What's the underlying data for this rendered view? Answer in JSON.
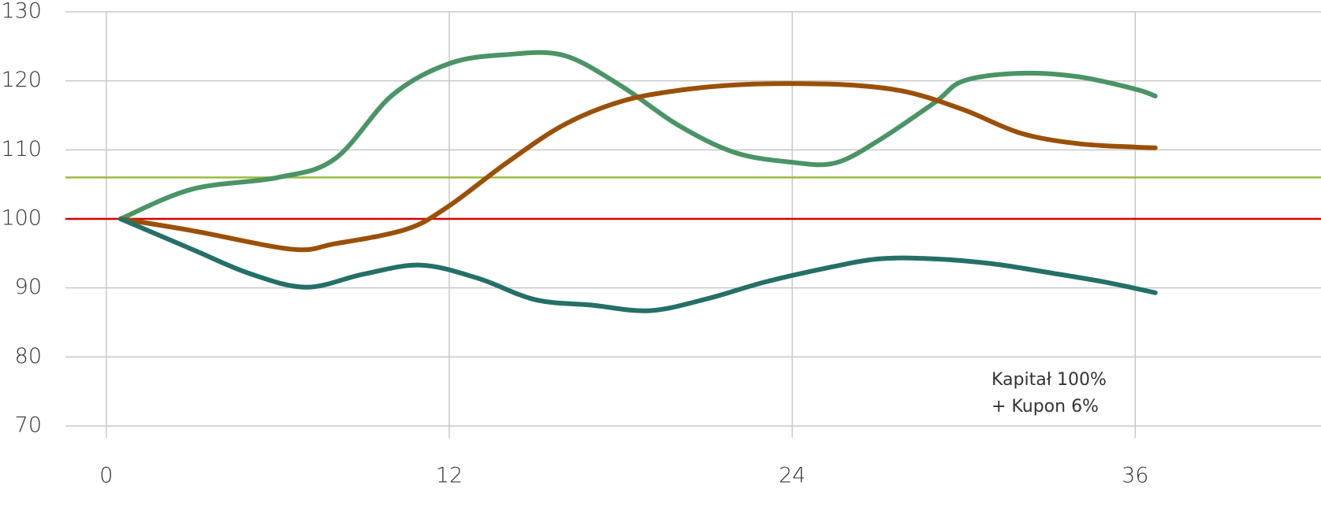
{
  "chart_data": {
    "type": "line",
    "annotation": [
      "Kapitał 100%",
      "+ Kupon 6%"
    ],
    "xlim": [
      -1.43,
      42.5
    ],
    "xticks": [
      0,
      12,
      24,
      36
    ],
    "ylim": [
      70,
      130
    ],
    "yticks": [
      70,
      80,
      90,
      100,
      110,
      120,
      130
    ],
    "grid": true,
    "reference_lines": [
      {
        "value": 100,
        "color": "#d40000"
      },
      {
        "value": 106,
        "color": "#9bbb3a"
      }
    ],
    "series": [
      {
        "color": "#4a9466",
        "x": [
          0.5,
          3,
          6,
          8,
          10,
          12,
          14,
          16,
          18,
          20,
          22,
          24,
          25.5,
          27,
          29,
          30,
          32,
          34,
          36,
          36.7
        ],
        "values": [
          100,
          104.3,
          106,
          108.7,
          117.9,
          122.5,
          123.8,
          123.7,
          119.3,
          113.6,
          109.6,
          108.2,
          108.1,
          111.3,
          116.9,
          120,
          121.1,
          120.6,
          118.8,
          117.8
        ]
      },
      {
        "color": "#9b5008",
        "x": [
          0.5,
          3,
          6.5,
          8,
          10.5,
          12,
          14,
          16,
          18,
          20,
          22,
          24,
          26,
          28,
          30,
          32,
          34,
          36,
          36.7
        ],
        "values": [
          100,
          98.3,
          95.6,
          96.4,
          98.5,
          101.9,
          108.1,
          113.6,
          117,
          118.6,
          119.4,
          119.6,
          119.4,
          118.4,
          115.8,
          112.4,
          110.9,
          110.4,
          110.3
        ]
      },
      {
        "color": "#247068",
        "x": [
          0.5,
          3,
          5,
          7,
          9,
          11,
          13,
          15,
          17,
          19,
          21,
          23,
          25,
          27,
          29,
          31,
          33,
          35,
          36.7
        ],
        "values": [
          100,
          95.6,
          92.1,
          90.1,
          92,
          93.3,
          91.4,
          88.3,
          87.5,
          86.7,
          88.4,
          90.8,
          92.7,
          94.2,
          94.2,
          93.5,
          92.2,
          90.8,
          89.3
        ]
      }
    ]
  }
}
